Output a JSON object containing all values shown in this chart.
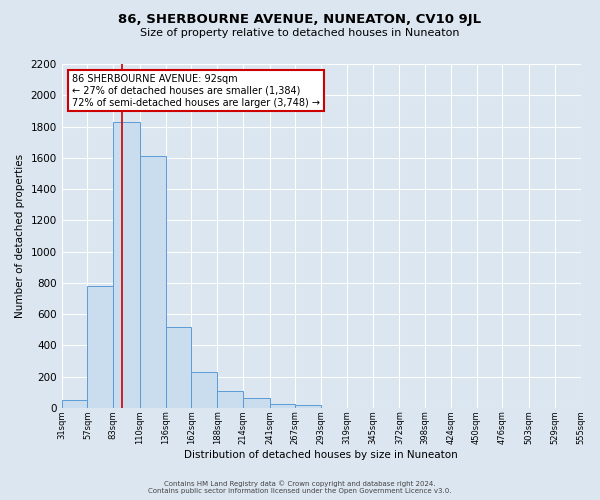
{
  "title": "86, SHERBOURNE AVENUE, NUNEATON, CV10 9JL",
  "subtitle": "Size of property relative to detached houses in Nuneaton",
  "xlabel": "Distribution of detached houses by size in Nuneaton",
  "ylabel": "Number of detached properties",
  "bar_color": "#c9ddef",
  "bar_edge_color": "#5b9bd5",
  "background_color": "#dce6f0",
  "grid_color": "#ffffff",
  "red_line_x": 92,
  "annotation_title": "86 SHERBOURNE AVENUE: 92sqm",
  "annotation_line1": "← 27% of detached houses are smaller (1,384)",
  "annotation_line2": "72% of semi-detached houses are larger (3,748) →",
  "annotation_box_color": "white",
  "annotation_border_color": "#cc0000",
  "footer_line1": "Contains HM Land Registry data © Crown copyright and database right 2024.",
  "footer_line2": "Contains public sector information licensed under the Open Government Licence v3.0.",
  "bin_edges": [
    31,
    57,
    83,
    110,
    136,
    162,
    188,
    214,
    241,
    267,
    293,
    319,
    345,
    372,
    398,
    424,
    450,
    476,
    503,
    529,
    555
  ],
  "bin_heights": [
    50,
    780,
    1830,
    1610,
    520,
    230,
    110,
    60,
    25,
    20,
    0,
    0,
    0,
    0,
    0,
    0,
    0,
    0,
    0,
    0
  ],
  "ylim": [
    0,
    2200
  ],
  "yticks": [
    0,
    200,
    400,
    600,
    800,
    1000,
    1200,
    1400,
    1600,
    1800,
    2000,
    2200
  ],
  "xtick_labels": [
    "31sqm",
    "57sqm",
    "83sqm",
    "110sqm",
    "136sqm",
    "162sqm",
    "188sqm",
    "214sqm",
    "241sqm",
    "267sqm",
    "293sqm",
    "319sqm",
    "345sqm",
    "372sqm",
    "398sqm",
    "424sqm",
    "450sqm",
    "476sqm",
    "503sqm",
    "529sqm",
    "555sqm"
  ]
}
